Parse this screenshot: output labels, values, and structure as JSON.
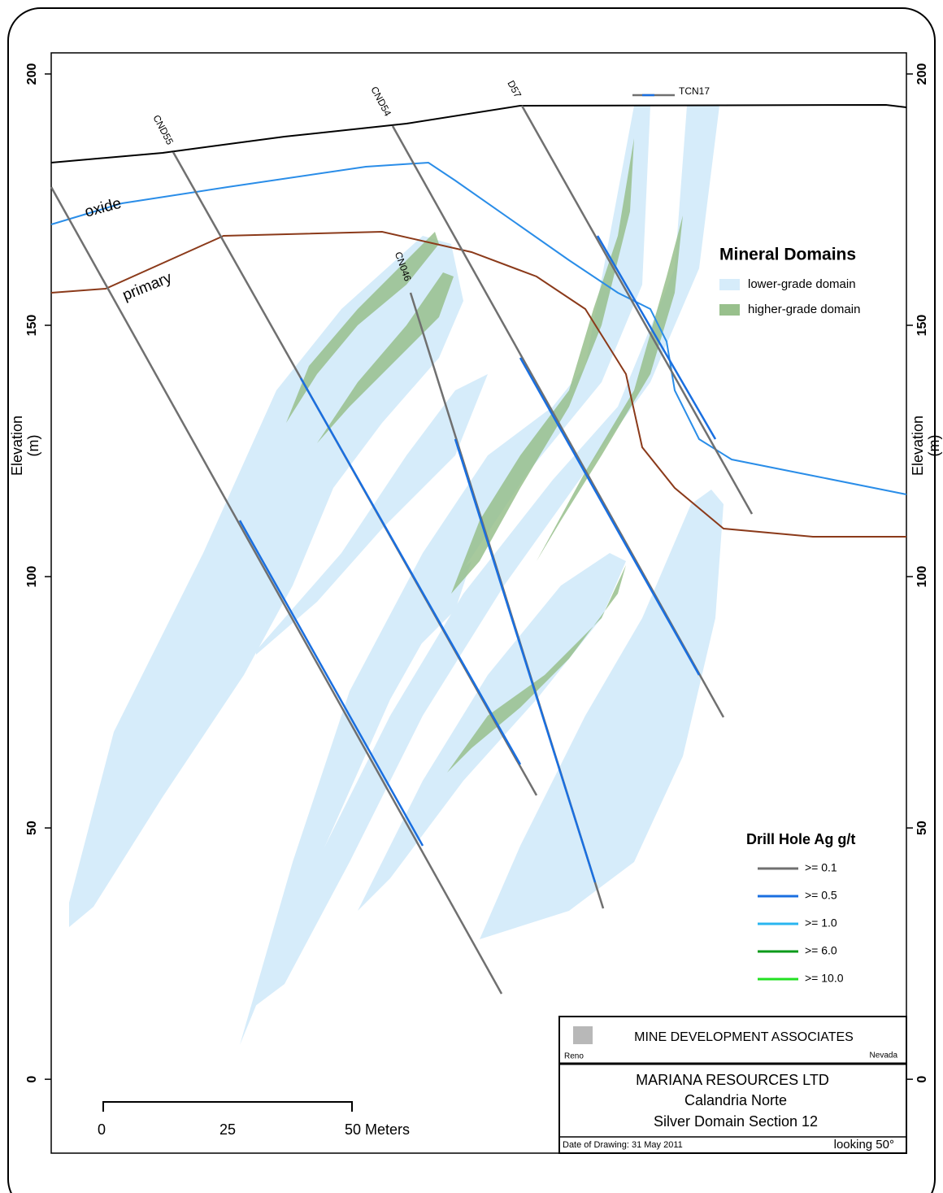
{
  "y_axis": {
    "title": [
      "Elevation",
      "(m)"
    ],
    "ylim": [
      -14.7,
      204.2
    ],
    "ticks": [
      0,
      50,
      100,
      150,
      200
    ]
  },
  "surfaces": [
    "oxide",
    "primary"
  ],
  "drill_holes": [
    "CND55",
    "CND54",
    "D57",
    "TCN17",
    "CN046"
  ],
  "mineral_domains": {
    "title": "Mineral Domains",
    "items": [
      {
        "label": "lower-grade domain",
        "color": "#d6ecfa"
      },
      {
        "label": "higher-grade domain",
        "color": "#98c08c"
      }
    ]
  },
  "drill_hole_legend": {
    "title": "Drill Hole Ag g/t",
    "items": [
      {
        "label": ">= 0.1",
        "color": "#707070"
      },
      {
        "label": ">= 0.5",
        "color": "#1a6fe0"
      },
      {
        "label": ">= 1.0",
        "color": "#29b5f0"
      },
      {
        "label": ">= 6.0",
        "color": "#0a9a1a"
      },
      {
        "label": ">= 10.0",
        "color": "#22e022"
      }
    ]
  },
  "scale_bar": {
    "labels": [
      "0",
      "25",
      "50 Meters"
    ]
  },
  "title_block": {
    "company": "MINE DEVELOPMENT ASSOCIATES",
    "city": "Reno",
    "state": "Nevada",
    "client": "MARIANA RESOURCES LTD",
    "project": "Calandria Norte",
    "section": "Silver Domain Section 12",
    "date": "Date of Drawing: 31 May 2011",
    "view": "looking 50°"
  }
}
